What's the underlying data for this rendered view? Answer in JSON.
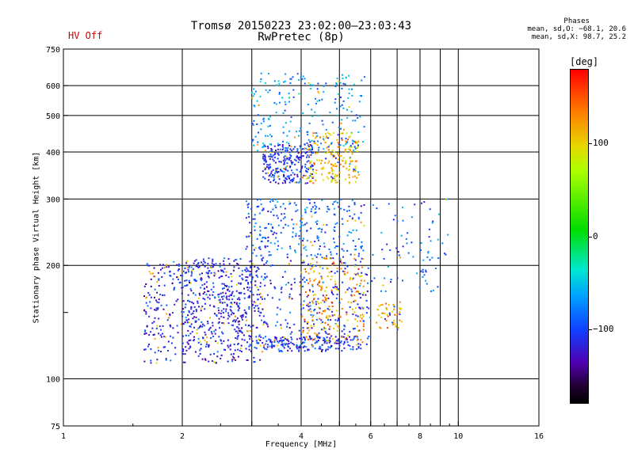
{
  "header": {
    "title": "Tromsø 20150223 23:02:00–23:03:43",
    "subtitle": "RwPretec (8p)",
    "status": "HV Off",
    "stats_heading": "Phases",
    "stats_line1": "mean, sd,O: −68.1, 20.6",
    "stats_line2": "mean, sd,X: 98.7, 25.2"
  },
  "colorbar": {
    "unit": "[deg]",
    "ticks": [
      100,
      0,
      -100
    ],
    "tick_labels": [
      "100",
      "0",
      "−100"
    ],
    "range": [
      -180,
      180
    ]
  },
  "chart_data": {
    "type": "scatter",
    "title": "Tromsø 20150223 23:02:00–23:03:43",
    "subtitle": "RwPretec (8p)",
    "xlabel": "Frequency [MHz]",
    "ylabel": "Stationary phase Virtual Height [km]",
    "x_scale": "log",
    "y_scale": "log",
    "xlim": [
      1,
      16
    ],
    "ylim": [
      75,
      750
    ],
    "x_ticks": [
      1,
      2,
      4,
      6,
      8,
      10,
      16
    ],
    "x_tick_labels": [
      "1",
      "2",
      "4",
      "6",
      "8",
      "10",
      "16"
    ],
    "x_minor_gridlines": [
      3,
      5,
      7,
      9
    ],
    "y_ticks": [
      75,
      100,
      200,
      300,
      400,
      500,
      600,
      750
    ],
    "y_tick_labels": [
      "75",
      "100",
      "200",
      "300",
      "400",
      "500",
      "600",
      "750"
    ],
    "y_minor_ticks": [
      150
    ],
    "grid": true,
    "color_encoding": "phase [deg]",
    "clusters": [
      {
        "name": "lower trace",
        "x": [
          1.6,
          3.2
        ],
        "y": [
          110,
          205
        ],
        "phase_center": -120,
        "n": 520
      },
      {
        "name": "lower broad",
        "x": [
          2.0,
          6.0
        ],
        "y": [
          120,
          210
        ],
        "phase_center": -110,
        "n": 520
      },
      {
        "name": "lower O band",
        "x": [
          3.2,
          5.6
        ],
        "y": [
          118,
          130
        ],
        "phase_center": -105,
        "n": 160
      },
      {
        "name": "lower X band",
        "x": [
          4.0,
          5.8
        ],
        "y": [
          125,
          210
        ],
        "phase_center": 120,
        "n": 200
      },
      {
        "name": "F1 broad",
        "x": [
          2.9,
          5.8
        ],
        "y": [
          210,
          300
        ],
        "phase_center": -90,
        "n": 280
      },
      {
        "name": "F2 O trace",
        "x": [
          3.2,
          4.3
        ],
        "y": [
          330,
          420
        ],
        "phase_center": -110,
        "n": 260
      },
      {
        "name": "F2 X trace",
        "x": [
          4.2,
          5.6
        ],
        "y": [
          330,
          450
        ],
        "phase_center": 110,
        "n": 200
      },
      {
        "name": "F2 upper",
        "x": [
          3.0,
          5.8
        ],
        "y": [
          400,
          650
        ],
        "phase_center": -70,
        "n": 220
      },
      {
        "name": "high freq X",
        "x": [
          6.2,
          7.2
        ],
        "y": [
          135,
          160
        ],
        "phase_center": 115,
        "n": 50
      },
      {
        "name": "high freq scatter",
        "x": [
          6.0,
          9.5
        ],
        "y": [
          170,
          300
        ],
        "phase_center": -90,
        "n": 80
      }
    ]
  }
}
